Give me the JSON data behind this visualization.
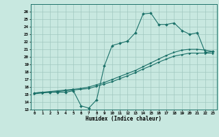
{
  "xlabel": "Humidex (Indice chaleur)",
  "background_color": "#c8e8e0",
  "grid_color": "#a0c8c0",
  "line_color": "#1a7068",
  "xlim": [
    -0.5,
    23.5
  ],
  "ylim": [
    13,
    27
  ],
  "yticks": [
    13,
    14,
    15,
    16,
    17,
    18,
    19,
    20,
    21,
    22,
    23,
    24,
    25,
    26
  ],
  "xticks": [
    0,
    1,
    2,
    3,
    4,
    5,
    6,
    7,
    8,
    9,
    10,
    11,
    12,
    13,
    14,
    15,
    16,
    17,
    18,
    19,
    20,
    21,
    22,
    23
  ],
  "line1_x": [
    0,
    1,
    2,
    3,
    4,
    5,
    6,
    7,
    8,
    9,
    10,
    11,
    12,
    13,
    14,
    15,
    16,
    17,
    18,
    19,
    20,
    21,
    22,
    23
  ],
  "line1_y": [
    15.2,
    15.3,
    15.3,
    15.3,
    15.3,
    15.5,
    13.5,
    13.2,
    14.3,
    18.8,
    21.5,
    21.8,
    22.1,
    23.2,
    25.7,
    25.8,
    24.3,
    24.3,
    24.5,
    23.5,
    23.0,
    23.2,
    20.6,
    20.7
  ],
  "line2_x": [
    0,
    1,
    2,
    3,
    4,
    5,
    6,
    7,
    8,
    9,
    10,
    11,
    12,
    13,
    14,
    15,
    16,
    17,
    18,
    19,
    20,
    21,
    22,
    23
  ],
  "line2_y": [
    15.2,
    15.3,
    15.4,
    15.5,
    15.6,
    15.7,
    15.8,
    16.0,
    16.3,
    16.6,
    17.0,
    17.4,
    17.8,
    18.2,
    18.7,
    19.2,
    19.7,
    20.2,
    20.6,
    20.9,
    21.0,
    21.0,
    20.9,
    20.7
  ],
  "line3_x": [
    0,
    1,
    2,
    3,
    4,
    5,
    6,
    7,
    8,
    9,
    10,
    11,
    12,
    13,
    14,
    15,
    16,
    17,
    18,
    19,
    20,
    21,
    22,
    23
  ],
  "line3_y": [
    15.1,
    15.2,
    15.3,
    15.4,
    15.5,
    15.6,
    15.7,
    15.8,
    16.1,
    16.4,
    16.7,
    17.1,
    17.5,
    17.9,
    18.4,
    18.8,
    19.3,
    19.7,
    20.1,
    20.3,
    20.5,
    20.5,
    20.5,
    20.5
  ]
}
